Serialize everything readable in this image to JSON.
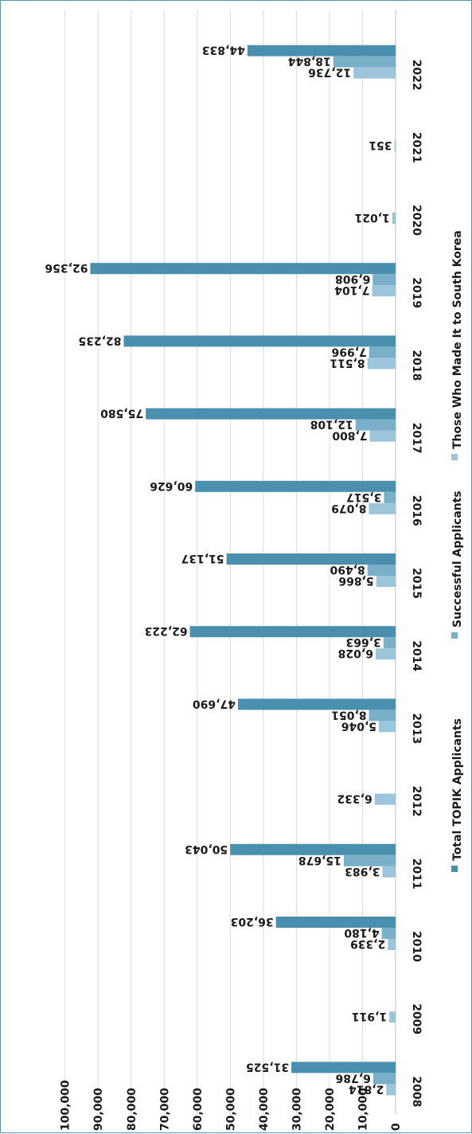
{
  "chart_data": {
    "type": "bar",
    "orientation": "rotated-180-horizontal",
    "categories": [
      "2008",
      "2009",
      "2010",
      "2011",
      "2012",
      "2013",
      "2014",
      "2015",
      "2016",
      "2017",
      "2018",
      "2019",
      "2020",
      "2021",
      "2022"
    ],
    "series": [
      {
        "name": "Total TOPIK Applicants",
        "color": "#4a8fad",
        "values": [
          31525,
          null,
          36203,
          50043,
          null,
          47690,
          62223,
          51137,
          60626,
          75580,
          82235,
          92356,
          null,
          null,
          44833
        ],
        "labels": [
          "31,525",
          "",
          "36,203",
          "50,043",
          "",
          "47,690",
          "62,223",
          "51,137",
          "60,626",
          "75,580",
          "82,235",
          "92,356",
          "",
          "",
          "44,833"
        ]
      },
      {
        "name": "Successful Applicants",
        "color": "#7aafc9",
        "values": [
          6786,
          null,
          4180,
          15678,
          null,
          8051,
          3663,
          8490,
          3517,
          12108,
          7996,
          6908,
          null,
          null,
          18844
        ],
        "labels": [
          "6,786",
          "",
          "4,180",
          "15,678",
          "",
          "8,051",
          "3,663",
          "8,490",
          "3,517",
          "12,108",
          "7,996",
          "6,908",
          "",
          "",
          "18,844"
        ]
      },
      {
        "name": "Those Who Made It to South Korea",
        "color": "#9cc5db",
        "values": [
          2814,
          1911,
          2339,
          3983,
          6332,
          5046,
          6028,
          5866,
          8079,
          7800,
          8511,
          7104,
          1021,
          351,
          12736
        ],
        "labels": [
          "2,814",
          "1,911",
          "2,339",
          "3,983",
          "6,332",
          "5,046",
          "6,028",
          "5,866",
          "8,079",
          "7,800",
          "8,511",
          "7,104",
          "1,021",
          "351",
          "12,736"
        ]
      }
    ],
    "value_axis": {
      "min": 0,
      "max": 100000,
      "ticks": [
        0,
        10000,
        20000,
        30000,
        40000,
        50000,
        60000,
        70000,
        80000,
        90000,
        100000
      ],
      "tick_labels": [
        "0",
        "10,000",
        "20,000",
        "30,000",
        "40,000",
        "50,000",
        "60,000",
        "70,000",
        "80,000",
        "90,000",
        "100,000"
      ]
    },
    "grid": true,
    "legend_position": "right"
  }
}
